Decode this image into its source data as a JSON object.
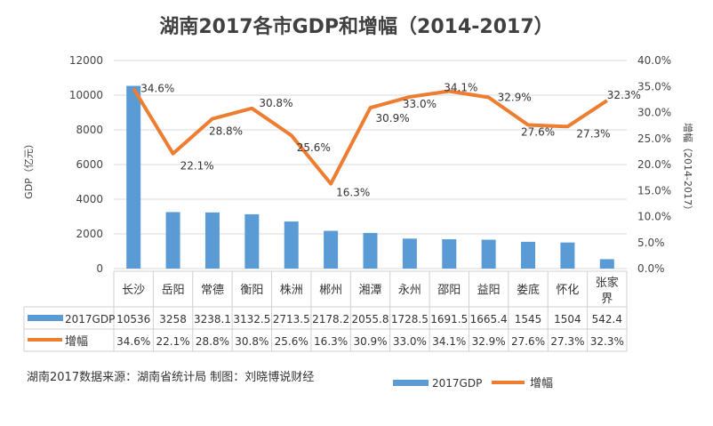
{
  "chart_data": {
    "type": "bar+line",
    "title": "湖南2017各市GDP和增幅（2014-2017）",
    "categories": [
      "长沙",
      "岳阳",
      "常德",
      "衡阳",
      "株洲",
      "郴州",
      "湘潭",
      "永州",
      "邵阳",
      "益阳",
      "娄底",
      "怀化",
      "张家界"
    ],
    "series": [
      {
        "name": "2017GDP",
        "type": "bar",
        "axis": "left",
        "color": "#5B9BD5",
        "values": [
          10536,
          3258,
          3238.1,
          3132.5,
          2713.5,
          2178.2,
          2055.8,
          1728.5,
          1691.5,
          1665.4,
          1545,
          1504,
          542.4
        ],
        "labels": [
          "10536",
          "3258",
          "3238.1",
          "3132.5",
          "2713.5",
          "2178.2",
          "2055.8",
          "1728.5",
          "1691.5",
          "1665.4",
          "1545",
          "1504",
          "542.4"
        ]
      },
      {
        "name": "增幅",
        "type": "line",
        "axis": "right",
        "color": "#ED7D31",
        "values": [
          34.6,
          22.1,
          28.8,
          30.8,
          25.6,
          16.3,
          30.9,
          33.0,
          34.1,
          32.9,
          27.6,
          27.3,
          32.3
        ],
        "labels": [
          "34.6%",
          "22.1%",
          "28.8%",
          "30.8%",
          "25.6%",
          "16.3%",
          "30.9%",
          "33.0%",
          "34.1%",
          "32.9%",
          "27.6%",
          "27.3%",
          "32.3%"
        ]
      }
    ],
    "ylabel": "GDP（亿元）",
    "y2label": "增幅（2014-2017）",
    "ylim": [
      0,
      12000
    ],
    "yticks": [
      "0",
      "2000",
      "4000",
      "6000",
      "8000",
      "10000",
      "12000"
    ],
    "y2lim": [
      0,
      40
    ],
    "y2ticks": [
      "0.0%",
      "5.0%",
      "10.0%",
      "15.0%",
      "20.0%",
      "25.0%",
      "30.0%",
      "35.0%",
      "40.0%"
    ],
    "grid": true,
    "legend": "bottom-right",
    "data_table": true
  },
  "source_note": "湖南2017数据来源：湖南省统计局 制图：刘晓博说财经"
}
